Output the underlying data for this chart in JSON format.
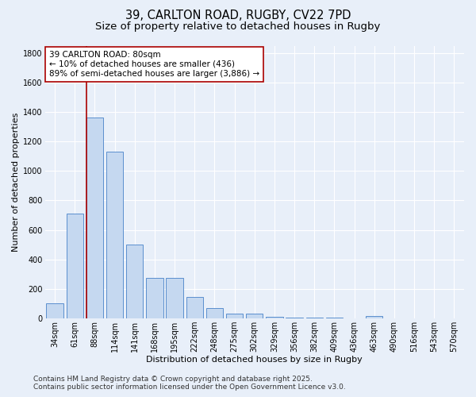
{
  "title1": "39, CARLTON ROAD, RUGBY, CV22 7PD",
  "title2": "Size of property relative to detached houses in Rugby",
  "xlabel": "Distribution of detached houses by size in Rugby",
  "ylabel": "Number of detached properties",
  "bin_labels": [
    "34sqm",
    "61sqm",
    "88sqm",
    "114sqm",
    "141sqm",
    "168sqm",
    "195sqm",
    "222sqm",
    "248sqm",
    "275sqm",
    "302sqm",
    "329sqm",
    "356sqm",
    "382sqm",
    "409sqm",
    "436sqm",
    "463sqm",
    "490sqm",
    "516sqm",
    "543sqm",
    "570sqm"
  ],
  "bar_values": [
    100,
    710,
    1360,
    1130,
    500,
    275,
    275,
    148,
    68,
    35,
    32,
    10,
    5,
    5,
    5,
    0,
    18,
    0,
    0,
    0,
    0
  ],
  "bar_color": "#c5d8f0",
  "bar_edge_color": "#5b8fce",
  "background_color": "#e8eff9",
  "grid_color": "#ffffff",
  "vline_color": "#aa0000",
  "annotation_text": "39 CARLTON ROAD: 80sqm\n← 10% of detached houses are smaller (436)\n89% of semi-detached houses are larger (3,886) →",
  "annotation_box_color": "#ffffff",
  "annotation_box_edge": "#aa0000",
  "ylim": [
    0,
    1850
  ],
  "yticks": [
    0,
    200,
    400,
    600,
    800,
    1000,
    1200,
    1400,
    1600,
    1800
  ],
  "footnote": "Contains HM Land Registry data © Crown copyright and database right 2025.\nContains public sector information licensed under the Open Government Licence v3.0.",
  "title1_fontsize": 10.5,
  "title2_fontsize": 9.5,
  "axis_label_fontsize": 8,
  "tick_fontsize": 7,
  "annotation_fontsize": 7.5,
  "footnote_fontsize": 6.5
}
